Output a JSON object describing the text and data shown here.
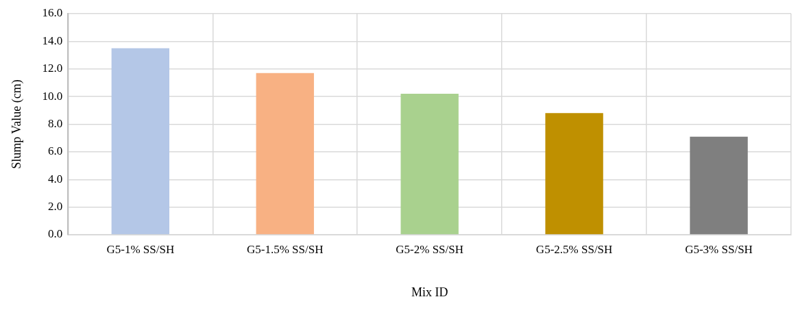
{
  "chart_data": {
    "type": "bar",
    "xlabel": "Mix ID",
    "ylabel": "Slump Value (cm)",
    "categories": [
      "G5-1% SS/SH",
      "G5-1.5% SS/SH",
      "G5-2% SS/SH",
      "G5-2.5% SS/SH",
      "G5-3% SS/SH"
    ],
    "values": [
      13.5,
      11.7,
      10.2,
      8.8,
      7.1
    ],
    "colors": [
      "#b4c7e7",
      "#f8b183",
      "#a9d18e",
      "#bf9000",
      "#7f7f7f"
    ],
    "ylim": [
      0,
      16
    ],
    "yticks": [
      {
        "value": 0,
        "label": "0.0"
      },
      {
        "value": 2,
        "label": "2.0"
      },
      {
        "value": 4,
        "label": "4.0"
      },
      {
        "value": 6,
        "label": "6.0"
      },
      {
        "value": 8,
        "label": "8.0"
      },
      {
        "value": 10,
        "label": "10.0"
      },
      {
        "value": 12,
        "label": "12.0"
      },
      {
        "value": 14,
        "label": "14.0"
      },
      {
        "value": 16,
        "label": "16.0"
      }
    ],
    "grid": true,
    "legend": false
  }
}
